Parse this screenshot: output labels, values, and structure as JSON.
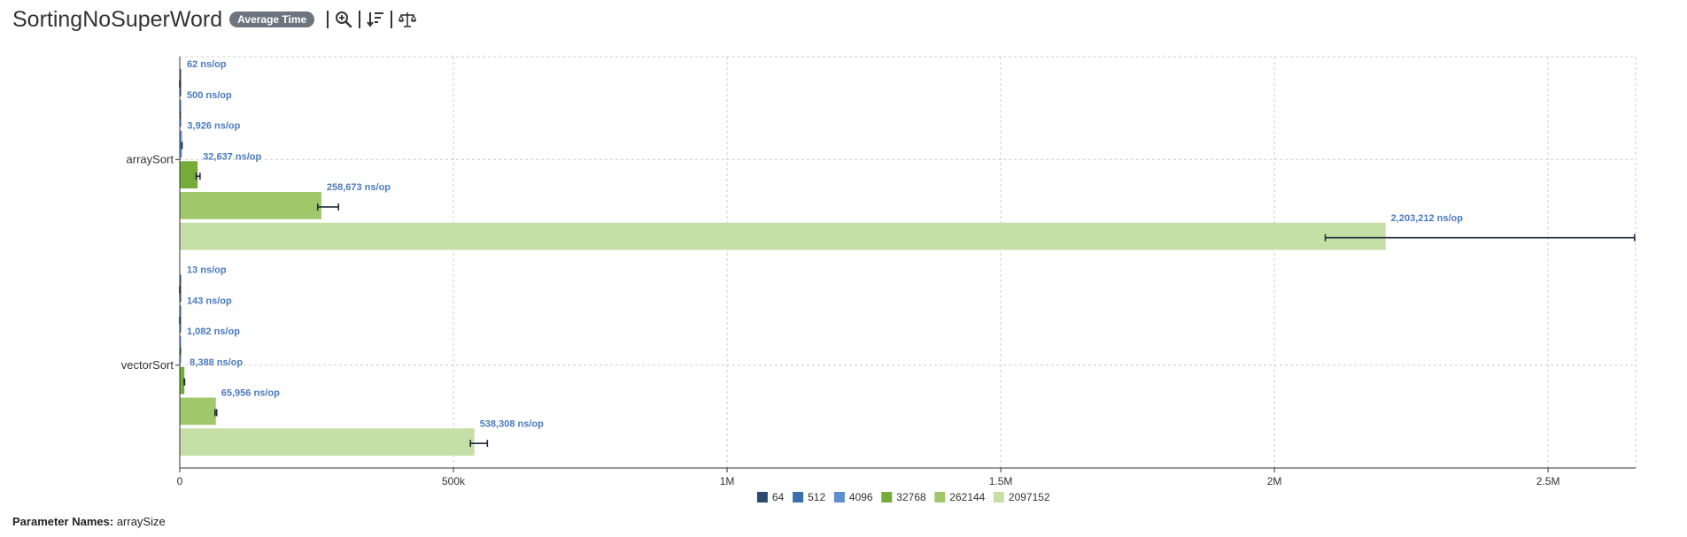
{
  "header": {
    "title": "SortingNoSuperWord",
    "mode_badge": "Average Time"
  },
  "toolbar": {
    "icons": [
      "zoom-in-icon",
      "sort-descending-icon",
      "balance-scale-icon"
    ]
  },
  "footer": {
    "param_label": "Parameter Names:",
    "param_value": "arraySize"
  },
  "chart_data": {
    "type": "bar",
    "orientation": "horizontal",
    "categories": [
      "arraySort",
      "vectorSort"
    ],
    "unit": "ns/op",
    "xlim": [
      0,
      2660000
    ],
    "x_ticks": [
      {
        "value": 0,
        "label": "0"
      },
      {
        "value": 500000,
        "label": "500k"
      },
      {
        "value": 1000000,
        "label": "1M"
      },
      {
        "value": 1500000,
        "label": "1.5M"
      },
      {
        "value": 2000000,
        "label": "2M"
      },
      {
        "value": 2500000,
        "label": "2.5M"
      }
    ],
    "grid": true,
    "legend_position": "bottom",
    "series": [
      {
        "name": "64",
        "color": "#2b4a6e",
        "values": [
          62,
          13
        ],
        "labels": [
          "62 ns/op",
          "13 ns/op"
        ],
        "error_low": [
          60,
          12
        ],
        "error_high": [
          64,
          14
        ]
      },
      {
        "name": "512",
        "color": "#3a6fad",
        "values": [
          500,
          143
        ],
        "labels": [
          "500 ns/op",
          "143 ns/op"
        ],
        "error_low": [
          480,
          138
        ],
        "error_high": [
          520,
          148
        ]
      },
      {
        "name": "4096",
        "color": "#5b8fd0",
        "values": [
          3926,
          1082
        ],
        "labels": [
          "3,926 ns/op",
          "1,082 ns/op"
        ],
        "error_low": [
          3700,
          1040
        ],
        "error_high": [
          4150,
          1120
        ]
      },
      {
        "name": "32768",
        "color": "#76ab3a",
        "values": [
          32637,
          8388
        ],
        "labels": [
          "32,637 ns/op",
          "8,388 ns/op"
        ],
        "error_low": [
          30000,
          8000
        ],
        "error_high": [
          37000,
          8800
        ]
      },
      {
        "name": "262144",
        "color": "#a0c86a",
        "values": [
          258673,
          65956
        ],
        "labels": [
          "258,673 ns/op",
          "65,956 ns/op"
        ],
        "error_low": [
          252000,
          64500
        ],
        "error_high": [
          290000,
          67500
        ]
      },
      {
        "name": "2097152",
        "color": "#c6dfa6",
        "values": [
          2203212,
          538308
        ],
        "labels": [
          "2,203,212 ns/op",
          "538,308 ns/op"
        ],
        "error_low": [
          2093000,
          531000
        ],
        "error_high": [
          2658000,
          562000
        ]
      }
    ]
  }
}
